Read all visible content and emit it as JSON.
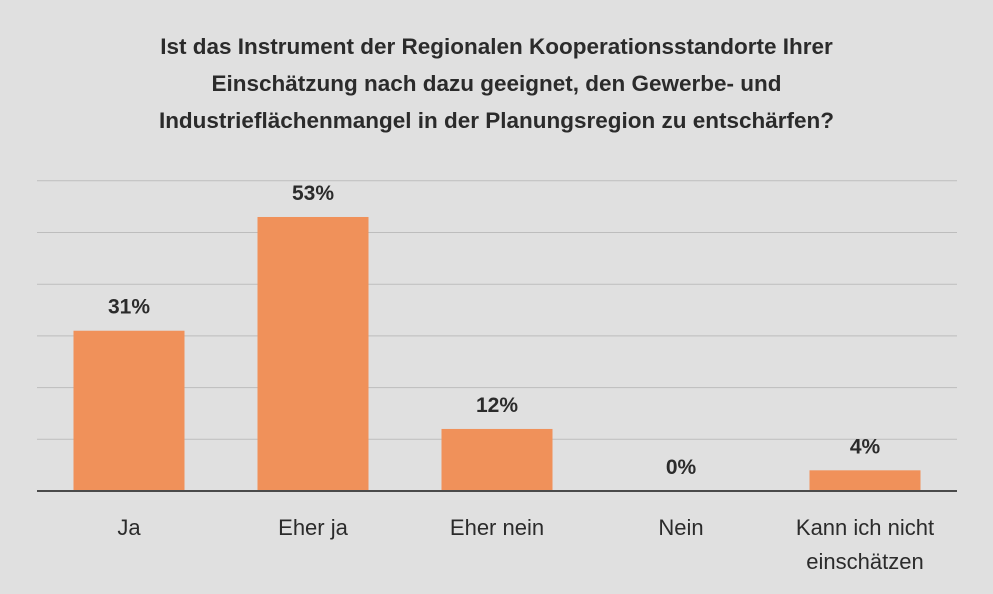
{
  "chart_data": {
    "type": "bar",
    "title_lines": [
      "Ist das Instrument der Regionalen Kooperationsstandorte Ihrer",
      "Einschätzung nach dazu geeignet, den Gewerbe- und",
      "Industrieflächenmangel in der Planungsregion zu entschärfen?"
    ],
    "categories": [
      [
        "Ja"
      ],
      [
        "Eher ja"
      ],
      [
        "Eher nein"
      ],
      [
        "Nein"
      ],
      [
        "Kann ich nicht",
        "einschätzen"
      ]
    ],
    "values": [
      31,
      53,
      12,
      0,
      4
    ],
    "data_labels": [
      "31%",
      "53%",
      "12%",
      "0%",
      "4%"
    ],
    "unit": "%",
    "ylim": [
      0,
      60
    ],
    "grid": true,
    "legend": "none",
    "colors": {
      "bar": "#f0915a",
      "background": "#e0e0e0",
      "gridline": "#bdbdbd",
      "axis": "#4a4a4a",
      "text": "#2b2b2b"
    }
  }
}
